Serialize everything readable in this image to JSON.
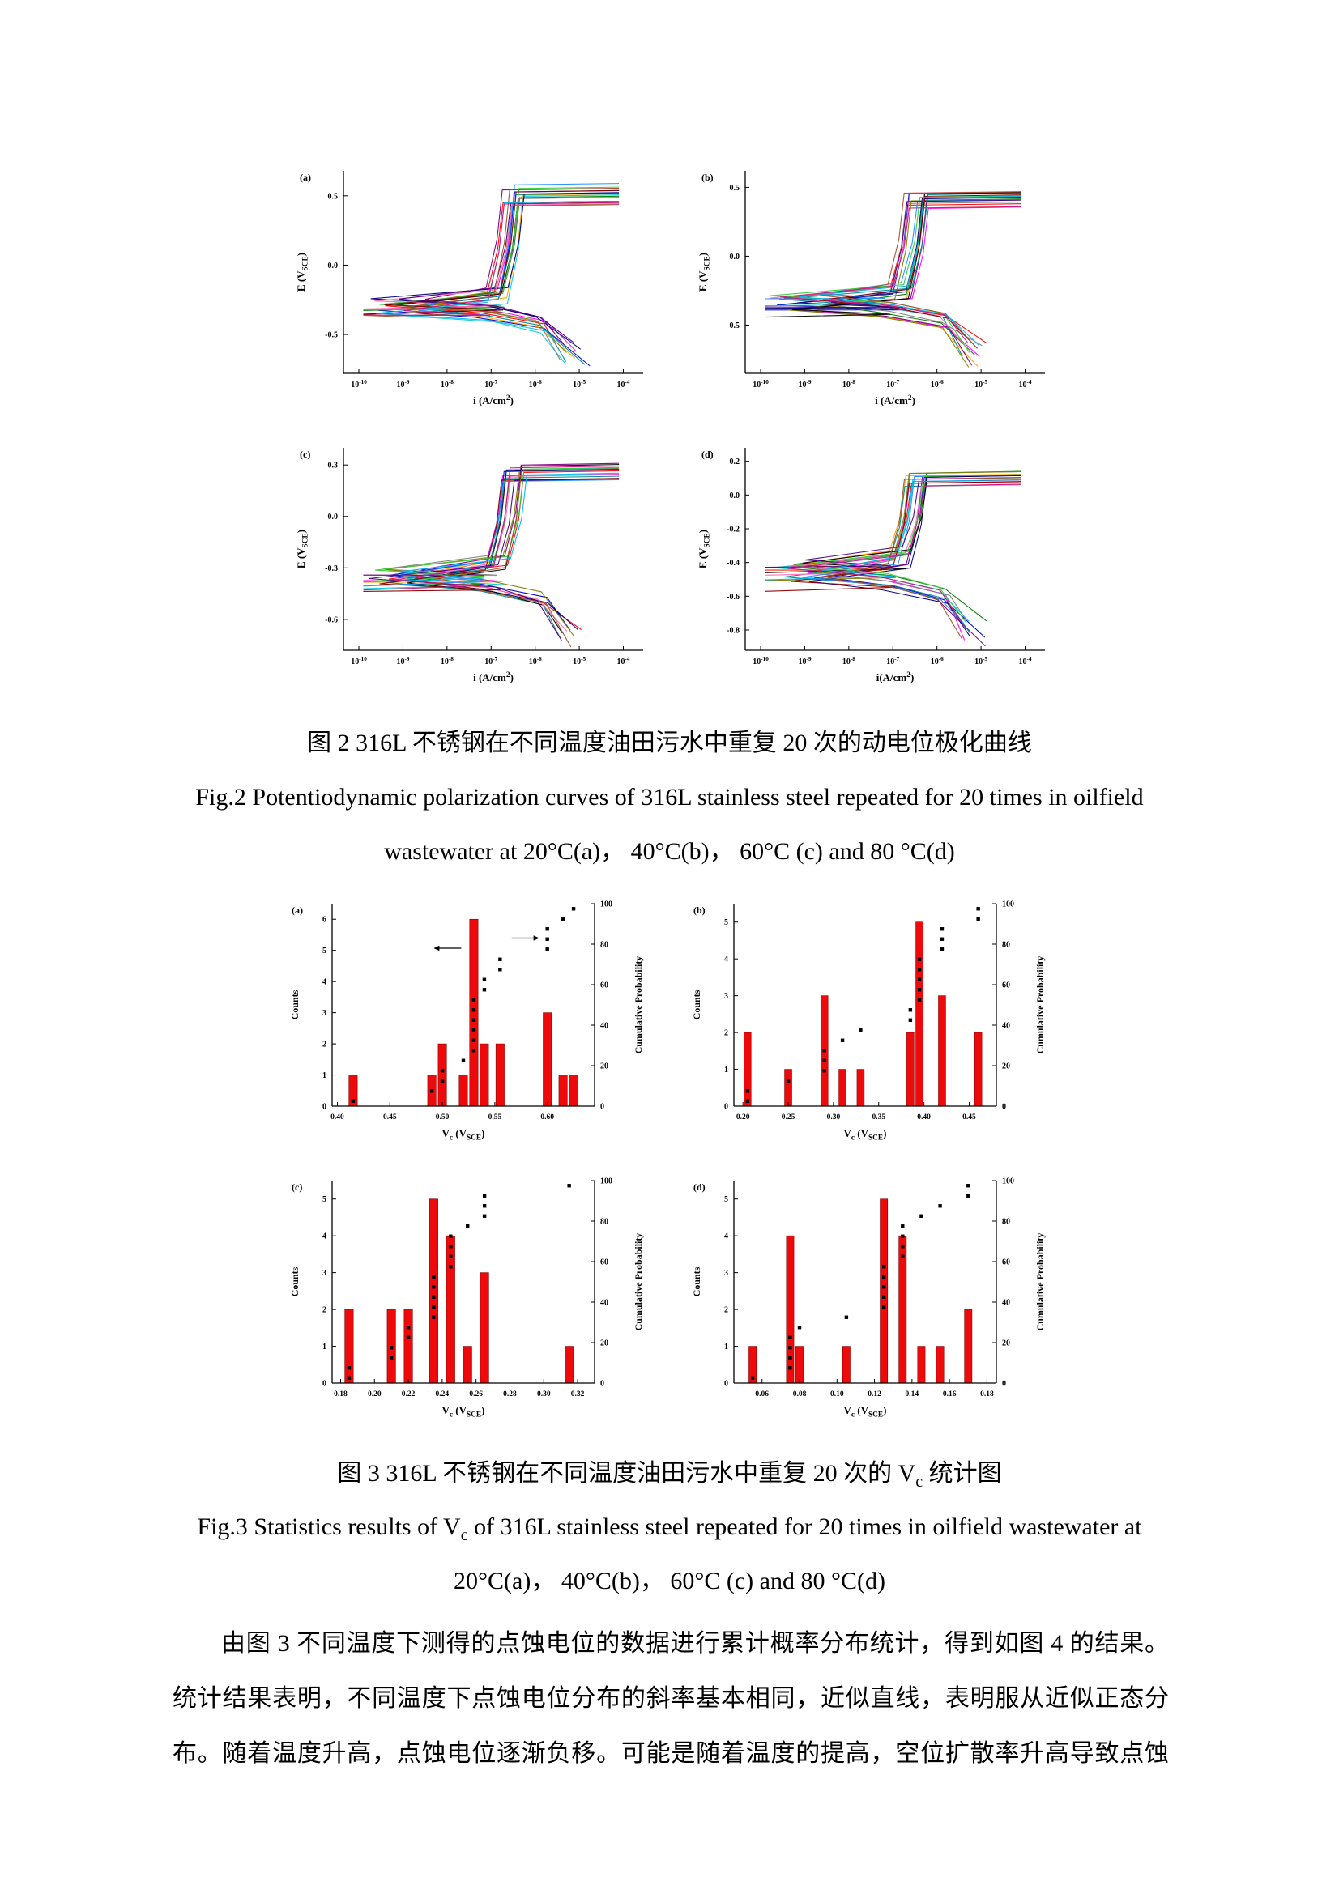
{
  "page": {
    "bg": "#ffffff"
  },
  "palette": [
    "#FF00FF",
    "#FF0000",
    "#0000CD",
    "#008000",
    "#00CED1",
    "#FFA500",
    "#808080",
    "#800080",
    "#008B8B",
    "#808000",
    "#000080",
    "#000000",
    "#FF69B4",
    "#1E90FF",
    "#32CD32",
    "#8B0000",
    "#4B0082",
    "#A0522D",
    "#00B7EB",
    "#C71585"
  ],
  "captions": {
    "fig2_cn": "图 2 316L 不锈钢在不同温度油田污水中重复 20 次的动电位极化曲线",
    "fig2_en_line1": "Fig.2 Potentiodynamic polarization curves of 316L stainless steel repeated for 20 times in oilfield",
    "fig2_en_line2": "wastewater at 20°C(a)，   40°C(b)，   60°C (c) and 80 °C(d)",
    "fig3_cn_pre": "图 3 316L 不锈钢在不同温度油田污水中重复 20 次的 V",
    "fig3_cn_sub": "c",
    "fig3_cn_post": " 统计图",
    "fig3_en_pre": "Fig.3 Statistics results of V",
    "fig3_en_sub": "c",
    "fig3_en_post": " of 316L stainless steel repeated for 20 times in oilfield wastewater at",
    "fig3_en_line2": "20°C(a)，   40°C(b)，   60°C (c) and 80 °C(d)"
  },
  "body": {
    "lines": [
      "由图 3 不同温度下测得的点蚀电位的数据进行累计概率分布统计，得到如图 4 的结果。",
      "统计结果表明，不同温度下点蚀电位分布的斜率基本相同，近似直线，表明服从近似正态分",
      "布。随着温度升高，点蚀电位逐渐负移。可能是随着温度的提高，空位扩散率升高导致点蚀"
    ]
  },
  "chart_data": [
    {
      "id": "fig2a",
      "type": "line",
      "panel_label": "(a)",
      "title": "Potentiodynamic polarization curves, 20°C, 20 repeats",
      "xlabel": "i (A/cm^{2})",
      "ylabel": "E (V_{SCE})",
      "x_exponents": [
        -10,
        -9,
        -8,
        -7,
        -6,
        -5,
        -4
      ],
      "ylim": [
        -0.78,
        0.68
      ],
      "yticks": [
        -0.5,
        0.0,
        0.5
      ],
      "n_curves": 20,
      "seed": 3,
      "ecorr": [
        -0.3,
        0.06
      ],
      "epit": [
        0.5,
        0.08
      ]
    },
    {
      "id": "fig2b",
      "type": "line",
      "panel_label": "(b)",
      "title": "Potentiodynamic polarization curves, 40°C, 20 repeats",
      "xlabel": "i (A/cm^{2})",
      "ylabel": "E (V_{SCE})",
      "x_exponents": [
        -10,
        -9,
        -8,
        -7,
        -6,
        -5,
        -4
      ],
      "ylim": [
        -0.85,
        0.62
      ],
      "yticks": [
        -0.5,
        0.0,
        0.5
      ],
      "n_curves": 20,
      "seed": 7,
      "ecorr": [
        -0.33,
        0.06
      ],
      "epit": [
        0.4,
        0.06
      ]
    },
    {
      "id": "fig2c",
      "type": "line",
      "panel_label": "(c)",
      "title": "Potentiodynamic polarization curves, 60°C, 20 repeats",
      "xlabel": "i (A/cm^{2})",
      "ylabel": "E (V_{SCE})",
      "x_exponents": [
        -10,
        -9,
        -8,
        -7,
        -6,
        -5,
        -4
      ],
      "ylim": [
        -0.78,
        0.4
      ],
      "yticks": [
        -0.6,
        -0.3,
        0.0,
        0.3
      ],
      "n_curves": 20,
      "seed": 13,
      "ecorr": [
        -0.35,
        0.05
      ],
      "epit": [
        0.25,
        0.05
      ]
    },
    {
      "id": "fig2d",
      "type": "line",
      "panel_label": "(d)",
      "title": "Potentiodynamic polarization curves, 80°C, 20 repeats",
      "xlabel": "i(A/cm^{2})",
      "ylabel": "E (V_{SCE})",
      "x_exponents": [
        -10,
        -9,
        -8,
        -7,
        -6,
        -5,
        -4
      ],
      "ylim": [
        -0.92,
        0.28
      ],
      "yticks": [
        -0.8,
        -0.6,
        -0.4,
        -0.2,
        0.0,
        0.2
      ],
      "n_curves": 20,
      "seed": 21,
      "ecorr": [
        -0.45,
        0.07
      ],
      "epit": [
        0.1,
        0.05
      ]
    },
    {
      "id": "fig3a",
      "type": "histogram",
      "panel_label": "(a)",
      "title": "Vc statistics, 20°C",
      "xlabel": "V_{c} (V_{SCE})",
      "ylabel_left": "Counts",
      "ylabel_right": "Cumulative Probability",
      "xlim": [
        0.395,
        0.645
      ],
      "xticks": [
        0.4,
        0.45,
        0.5,
        0.55,
        0.6
      ],
      "xtick_decimals": 2,
      "ylim_left": [
        0,
        6.5
      ],
      "yticks_left": [
        0,
        1,
        2,
        3,
        4,
        5,
        6
      ],
      "yticks_right": [
        0,
        20,
        40,
        60,
        80,
        100
      ],
      "bar_w": 0.008,
      "bars": [
        [
          0.415,
          1
        ],
        [
          0.49,
          1
        ],
        [
          0.5,
          2
        ],
        [
          0.52,
          1
        ],
        [
          0.53,
          6
        ],
        [
          0.54,
          2
        ],
        [
          0.555,
          2
        ],
        [
          0.6,
          3
        ],
        [
          0.615,
          1
        ],
        [
          0.625,
          1
        ]
      ],
      "bar_color": "#ee0a0a",
      "point_color": "#000000",
      "arrows": [
        {
          "x": 0.518,
          "p": 78,
          "dir": "left",
          "len": 34
        },
        {
          "x": 0.566,
          "p": 83,
          "dir": "right",
          "len": 34
        }
      ]
    },
    {
      "id": "fig3b",
      "type": "histogram",
      "panel_label": "(b)",
      "title": "Vc statistics, 40°C",
      "xlabel": "V_{c} (V_{SCE})",
      "ylabel_left": "Counts",
      "ylabel_right": "Cumulative Probability",
      "xlim": [
        0.19,
        0.48
      ],
      "xticks": [
        0.2,
        0.25,
        0.3,
        0.35,
        0.4,
        0.45
      ],
      "xtick_decimals": 2,
      "ylim_left": [
        0,
        5.5
      ],
      "yticks_left": [
        0,
        1,
        2,
        3,
        4,
        5
      ],
      "yticks_right": [
        0,
        20,
        40,
        60,
        80,
        100
      ],
      "bar_w": 0.008,
      "bars": [
        [
          0.205,
          2
        ],
        [
          0.25,
          1
        ],
        [
          0.29,
          3
        ],
        [
          0.31,
          1
        ],
        [
          0.33,
          1
        ],
        [
          0.385,
          2
        ],
        [
          0.395,
          5
        ],
        [
          0.42,
          3
        ],
        [
          0.46,
          2
        ]
      ],
      "bar_color": "#ee0a0a",
      "point_color": "#000000",
      "arrows": []
    },
    {
      "id": "fig3c",
      "type": "histogram",
      "panel_label": "(c)",
      "title": "Vc statistics, 60°C",
      "xlabel": "V_{c} (V_{SCE})",
      "ylabel_left": "Counts",
      "ylabel_right": "Cumulative Probability",
      "xlim": [
        0.175,
        0.33
      ],
      "xticks": [
        0.18,
        0.2,
        0.22,
        0.24,
        0.26,
        0.28,
        0.3,
        0.32
      ],
      "xtick_decimals": 2,
      "ylim_left": [
        0,
        5.5
      ],
      "yticks_left": [
        0,
        1,
        2,
        3,
        4,
        5
      ],
      "yticks_right": [
        0,
        20,
        40,
        60,
        80,
        100
      ],
      "bar_w": 0.005,
      "bars": [
        [
          0.185,
          2
        ],
        [
          0.21,
          2
        ],
        [
          0.22,
          2
        ],
        [
          0.235,
          5
        ],
        [
          0.245,
          4
        ],
        [
          0.255,
          1
        ],
        [
          0.265,
          3
        ],
        [
          0.315,
          1
        ]
      ],
      "bar_color": "#ee0a0a",
      "point_color": "#000000",
      "arrows": []
    },
    {
      "id": "fig3d",
      "type": "histogram",
      "panel_label": "(d)",
      "title": "Vc statistics, 80°C",
      "xlabel": "V_{c} (V_{SCE})",
      "ylabel_left": "Counts",
      "ylabel_right": "Cumulative Probability",
      "xlim": [
        0.045,
        0.185
      ],
      "xticks": [
        0.06,
        0.08,
        0.1,
        0.12,
        0.14,
        0.16,
        0.18
      ],
      "xtick_decimals": 2,
      "ylim_left": [
        0,
        5.5
      ],
      "yticks_left": [
        0,
        1,
        2,
        3,
        4,
        5
      ],
      "yticks_right": [
        0,
        20,
        40,
        60,
        80,
        100
      ],
      "bar_w": 0.004,
      "bars": [
        [
          0.055,
          1
        ],
        [
          0.075,
          4
        ],
        [
          0.08,
          1
        ],
        [
          0.105,
          1
        ],
        [
          0.125,
          5
        ],
        [
          0.135,
          4
        ],
        [
          0.145,
          1
        ],
        [
          0.155,
          1
        ],
        [
          0.17,
          2
        ]
      ],
      "bar_color": "#ee0a0a",
      "point_color": "#000000",
      "arrows": []
    }
  ]
}
